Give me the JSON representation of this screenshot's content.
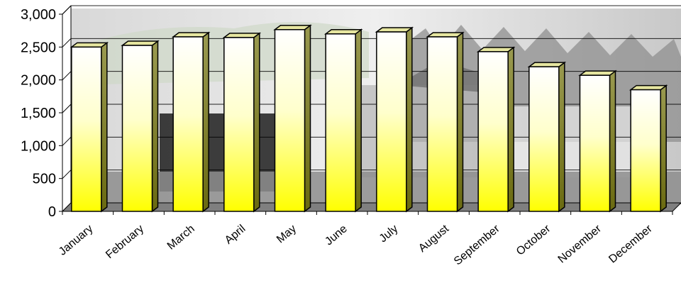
{
  "chart_data": {
    "type": "bar",
    "style": "3d-column",
    "title": "",
    "xlabel": "",
    "ylabel": "",
    "categories": [
      "January",
      "February",
      "March",
      "April",
      "May",
      "June",
      "July",
      "August",
      "September",
      "October",
      "November",
      "December"
    ],
    "values": [
      2500,
      2525,
      2655,
      2645,
      2765,
      2700,
      2730,
      2655,
      2430,
      2200,
      2070,
      1850
    ],
    "ylim": [
      0,
      3000
    ],
    "yticks": [
      "0",
      "500",
      "1,000",
      "1,500",
      "2,000",
      "2,500",
      "3,000"
    ],
    "grid": true,
    "legend": "none",
    "background": "faded photo of a building with trees (decorative)",
    "colors": {
      "bar_top": "#ffffff",
      "bar_bottom": "#ffff00",
      "bar_side": "#7a7a20",
      "bar_cap": "#e6e6a0",
      "bar_edge": "#000000",
      "floor": "#7f7f7f",
      "gridline": "#000000"
    }
  }
}
